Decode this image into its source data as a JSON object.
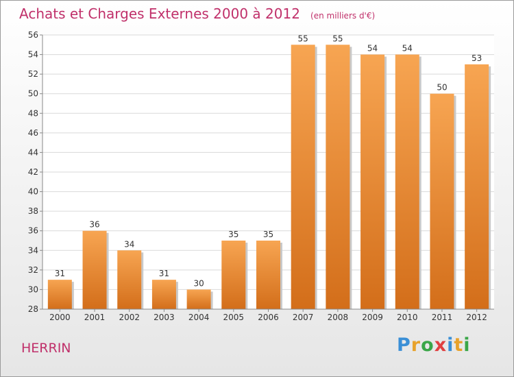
{
  "title": "Achats et Charges Externes 2000 à 2012",
  "unit_note": "(en milliers d'€)",
  "location": "HERRIN",
  "brand": {
    "name": "Proxiti",
    "letter_colors": [
      "#3a8fd6",
      "#e8a22b",
      "#3aa648",
      "#e04040",
      "#3a8fd6",
      "#e8a22b",
      "#3aa648"
    ]
  },
  "chart_data": {
    "type": "bar",
    "categories": [
      "2000",
      "2001",
      "2002",
      "2003",
      "2004",
      "2005",
      "2006",
      "2007",
      "2008",
      "2009",
      "2010",
      "2011",
      "2012"
    ],
    "values": [
      31,
      36,
      34,
      31,
      30,
      35,
      35,
      55,
      55,
      54,
      54,
      50,
      53
    ],
    "data_labels": [
      "31",
      "36",
      "34",
      "31",
      "30",
      "35",
      "35",
      "55",
      "55",
      "54",
      "54",
      "50",
      "53"
    ],
    "ylim": [
      28,
      56
    ],
    "yticks": [
      "28",
      "30",
      "32",
      "34",
      "36",
      "38",
      "40",
      "42",
      "44",
      "46",
      "48",
      "50",
      "52",
      "54",
      "56"
    ],
    "grid": "horizontal",
    "bar_color_top": "#f7a552",
    "bar_color_bottom": "#d36e1a"
  }
}
